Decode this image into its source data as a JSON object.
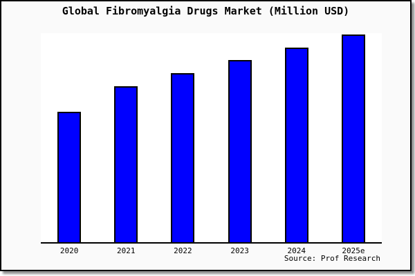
{
  "title": "Global Fibromyalgia Drugs Market (Million USD)",
  "source_credit": "Source: Prof Research",
  "chart_data": {
    "type": "bar",
    "title": "Global Fibromyalgia Drugs Market (Million USD)",
    "categories": [
      "2020",
      "2021",
      "2022",
      "2023",
      "2024",
      "2025e"
    ],
    "values": [
      189,
      226,
      245,
      264,
      282,
      301
    ],
    "values_note": "relative bar heights in pixels; chart shows no y-axis scale or data labels",
    "xlabel": "",
    "ylabel": "",
    "grid": false,
    "legend": null,
    "annotations": [
      "Source: Prof Research"
    ],
    "colors": {
      "bar_fill": "#0000ff",
      "bar_border": "#000000",
      "page_background": "#fafafa",
      "plot_background": "#ffffff",
      "axis": "#000000",
      "text": "#000000"
    }
  }
}
